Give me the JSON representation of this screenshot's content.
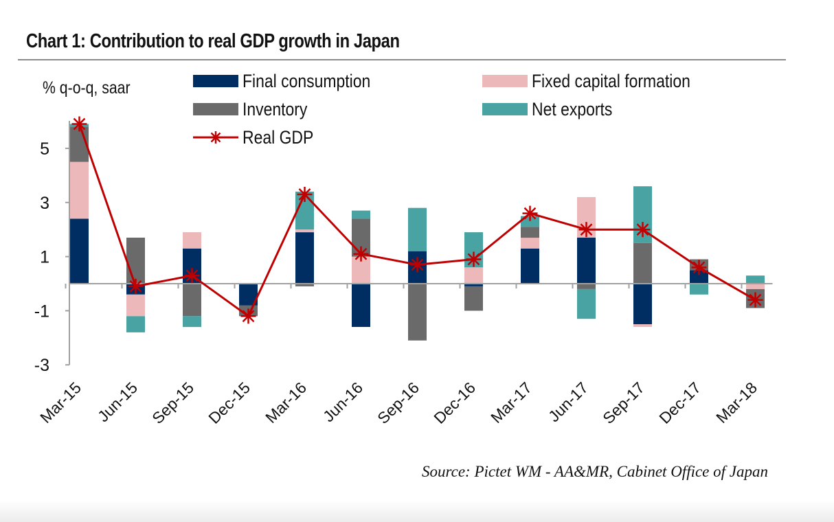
{
  "chart_data": {
    "type": "bar",
    "stacked": true,
    "title": "Chart 1: Contribution to real GDP growth in Japan",
    "ylabel": "% q-o-q, saar",
    "xlabel": "",
    "ylim": [
      -3,
      6
    ],
    "yticks": [
      -3,
      -1,
      1,
      3,
      5
    ],
    "ytick_labels": [
      "-3",
      "-1",
      "1",
      "3",
      "5"
    ],
    "grid": false,
    "legend_position": "top",
    "categories": [
      "Mar-15",
      "Jun-15",
      "Sep-15",
      "Dec-15",
      "Mar-16",
      "Jun-16",
      "Sep-16",
      "Dec-16",
      "Mar-17",
      "Jun-17",
      "Sep-17",
      "Dec-17",
      "Mar-18"
    ],
    "series": [
      {
        "name": "Final consumption",
        "kind": "bar",
        "color": "#002d62",
        "values": [
          2.4,
          -0.4,
          1.3,
          -0.8,
          1.9,
          -1.6,
          1.2,
          -0.1,
          1.3,
          1.7,
          -1.5,
          0.5,
          0.0
        ]
      },
      {
        "name": "Fixed capital formation",
        "kind": "bar",
        "color": "#ecb8b9",
        "values": [
          2.1,
          -0.8,
          0.6,
          0.0,
          0.1,
          1.0,
          0.0,
          0.6,
          0.4,
          1.5,
          -0.1,
          0.0,
          -0.2
        ]
      },
      {
        "name": "Inventory",
        "kind": "bar",
        "color": "#6a6a6a",
        "values": [
          1.3,
          1.7,
          -1.2,
          -0.4,
          -0.1,
          1.4,
          -2.1,
          -0.9,
          0.4,
          -0.2,
          1.5,
          0.4,
          -0.7
        ]
      },
      {
        "name": "Net exports",
        "kind": "bar",
        "color": "#4aa3a3",
        "values": [
          0.1,
          -0.6,
          -0.4,
          0.0,
          1.4,
          0.3,
          1.6,
          1.3,
          0.4,
          -1.1,
          2.1,
          -0.4,
          0.3
        ]
      },
      {
        "name": "Real GDP",
        "kind": "line",
        "color": "#c00000",
        "marker": "asterisk",
        "values": [
          5.9,
          -0.1,
          0.3,
          -1.2,
          3.3,
          1.1,
          0.7,
          0.9,
          2.6,
          2.0,
          2.0,
          0.6,
          -0.6
        ]
      }
    ],
    "source": "Source: Pictet WM - AA&MR, Cabinet Office of Japan"
  },
  "legend": [
    {
      "label": "Final consumption",
      "color": "#002d62",
      "type": "swatch"
    },
    {
      "label": "Fixed capital formation",
      "color": "#ecb8b9",
      "type": "swatch"
    },
    {
      "label": "Inventory",
      "color": "#6a6a6a",
      "type": "swatch"
    },
    {
      "label": "Net exports",
      "color": "#4aa3a3",
      "type": "swatch"
    },
    {
      "label": "Real GDP",
      "color": "#c00000",
      "type": "line-marker"
    }
  ],
  "colors": {
    "axis": "#a0a0a0",
    "title_rule": "#8a8a8a"
  }
}
